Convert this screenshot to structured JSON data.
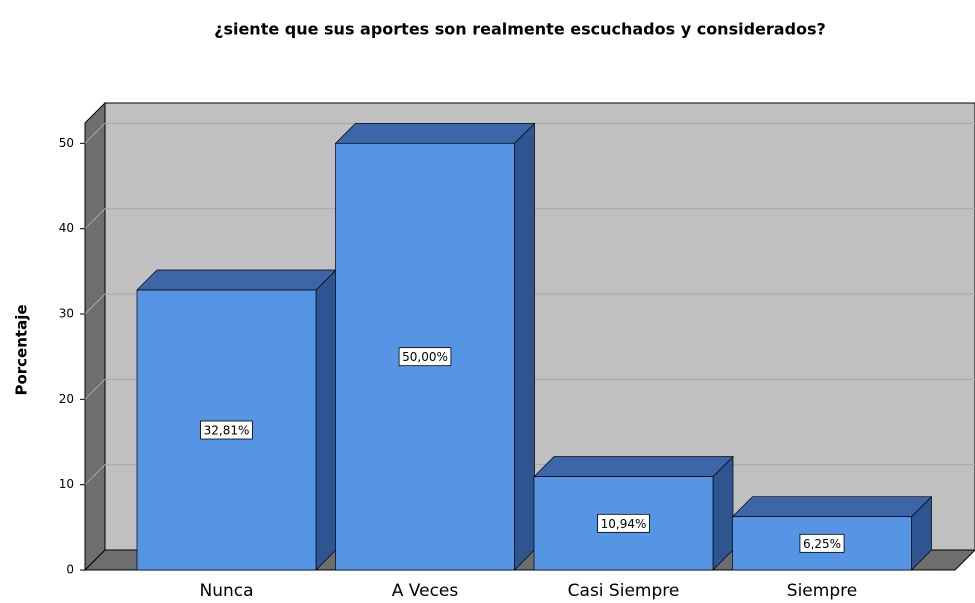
{
  "chart_data": {
    "type": "bar3d",
    "title": "¿siente que sus aportes son realmente escuchados y considerados?",
    "y_label": "Porcentaje",
    "categories": [
      "Nunca",
      "A Veces",
      "Casi Siempre",
      "Siempre"
    ],
    "values": [
      32.81,
      50.0,
      10.94,
      6.25
    ],
    "value_labels": [
      "32,81%",
      "50,00%",
      "10,94%",
      "6,25%"
    ],
    "color": "#5595e4",
    "ylim": [
      0,
      52.5
    ],
    "yticks": [
      0,
      10,
      20,
      30,
      40,
      50
    ],
    "grid": true
  }
}
